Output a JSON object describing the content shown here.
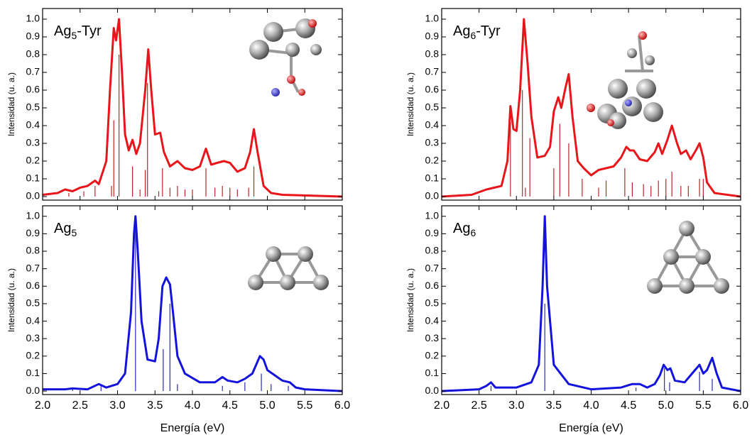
{
  "chart_data": [
    {
      "type": "line",
      "label": {
        "text": "Ag",
        "sub": "5",
        "suffix": "-Tyr"
      },
      "ylabel": "Intensidad (u. a.)",
      "xlim": [
        2.0,
        6.0
      ],
      "ylim": [
        -0.02,
        1.06
      ],
      "xticks": [
        2,
        2.5,
        3,
        3.5,
        4,
        4.5,
        5,
        5.5,
        6
      ],
      "yticks": [
        {
          "value": 0,
          "label": "0.0"
        },
        {
          "value": 0.1,
          "label": "0.1"
        },
        {
          "value": 0.2,
          "label": "0.2"
        },
        {
          "value": 0.3,
          "label": "0.3"
        },
        {
          "value": 0.4,
          "label": "0.4"
        },
        {
          "value": 0.5,
          "label": "0.5"
        },
        {
          "value": 0.6,
          "label": "0.6"
        },
        {
          "value": 0.7,
          "label": "0.7"
        },
        {
          "value": 0.8,
          "label": "0.8"
        },
        {
          "value": 0.9,
          "label": "0.9"
        },
        {
          "value": 1,
          "label": "1.0"
        }
      ],
      "series": [
        {
          "style": "line",
          "color": "#e8161b",
          "x": [
            2.0,
            2.2,
            2.3,
            2.4,
            2.5,
            2.6,
            2.7,
            2.75,
            2.85,
            2.9,
            2.95,
            2.98,
            3.02,
            3.06,
            3.1,
            3.15,
            3.2,
            3.25,
            3.3,
            3.37,
            3.41,
            3.45,
            3.5,
            3.57,
            3.62,
            3.7,
            3.8,
            3.9,
            4.0,
            4.1,
            4.18,
            4.25,
            4.33,
            4.42,
            4.5,
            4.6,
            4.7,
            4.77,
            4.82,
            4.87,
            4.95,
            5.05,
            5.2,
            6.0
          ],
          "values": [
            0.01,
            0.02,
            0.04,
            0.03,
            0.05,
            0.06,
            0.09,
            0.07,
            0.2,
            0.6,
            0.95,
            0.88,
            1.0,
            0.7,
            0.35,
            0.26,
            0.32,
            0.24,
            0.3,
            0.6,
            0.83,
            0.6,
            0.35,
            0.36,
            0.25,
            0.17,
            0.2,
            0.16,
            0.15,
            0.17,
            0.27,
            0.18,
            0.19,
            0.2,
            0.19,
            0.14,
            0.16,
            0.25,
            0.38,
            0.25,
            0.06,
            0.02,
            0.01,
            0.0
          ]
        },
        {
          "style": "stick",
          "color": "#b8282c",
          "x": [
            2.35,
            2.55,
            2.7,
            2.92,
            2.95,
            3.02,
            3.2,
            3.3,
            3.37,
            3.4,
            3.55,
            3.6,
            3.7,
            3.8,
            3.9,
            4.0,
            4.18,
            4.3,
            4.4,
            4.5,
            4.6,
            4.75,
            4.82
          ],
          "values": [
            0.02,
            0.03,
            0.06,
            0.06,
            0.43,
            0.8,
            0.17,
            0.04,
            0.15,
            0.64,
            0.03,
            0.16,
            0.05,
            0.06,
            0.04,
            0.04,
            0.16,
            0.05,
            0.06,
            0.05,
            0.04,
            0.05,
            0.17
          ]
        }
      ]
    },
    {
      "type": "line",
      "label": {
        "text": "Ag",
        "sub": "6",
        "suffix": "-Tyr"
      },
      "ylabel": "Intensidad (u. a.)",
      "xlim": [
        2.0,
        6.0
      ],
      "ylim": [
        -0.02,
        1.06
      ],
      "xticks": [
        2,
        2.5,
        3,
        3.5,
        4,
        4.5,
        5,
        5.5,
        6
      ],
      "yticks": [
        {
          "value": 0,
          "label": "0.0"
        },
        {
          "value": 0.1,
          "label": "0.1"
        },
        {
          "value": 0.2,
          "label": "0.2"
        },
        {
          "value": 0.3,
          "label": "0.3"
        },
        {
          "value": 0.4,
          "label": "0.4"
        },
        {
          "value": 0.5,
          "label": "0.5"
        },
        {
          "value": 0.6,
          "label": "0.6"
        },
        {
          "value": 0.7,
          "label": "0.7"
        },
        {
          "value": 0.8,
          "label": "0.8"
        },
        {
          "value": 0.9,
          "label": "0.9"
        },
        {
          "value": 1,
          "label": "1.0"
        }
      ],
      "series": [
        {
          "style": "line",
          "color": "#e8161b",
          "x": [
            2.0,
            2.4,
            2.6,
            2.8,
            2.88,
            2.92,
            2.96,
            3.0,
            3.05,
            3.1,
            3.15,
            3.2,
            3.28,
            3.38,
            3.45,
            3.5,
            3.56,
            3.6,
            3.66,
            3.7,
            3.75,
            3.82,
            3.9,
            4.0,
            4.1,
            4.2,
            4.3,
            4.4,
            4.47,
            4.52,
            4.57,
            4.65,
            4.75,
            4.85,
            4.9,
            4.95,
            5.02,
            5.08,
            5.15,
            5.2,
            5.27,
            5.33,
            5.4,
            5.45,
            5.5,
            5.55,
            5.65,
            6.0
          ],
          "values": [
            0.0,
            0.01,
            0.04,
            0.06,
            0.2,
            0.51,
            0.38,
            0.37,
            0.6,
            1.0,
            0.75,
            0.45,
            0.22,
            0.23,
            0.28,
            0.48,
            0.56,
            0.5,
            0.62,
            0.69,
            0.45,
            0.2,
            0.16,
            0.12,
            0.15,
            0.16,
            0.17,
            0.22,
            0.28,
            0.26,
            0.26,
            0.21,
            0.2,
            0.25,
            0.3,
            0.24,
            0.32,
            0.4,
            0.3,
            0.24,
            0.26,
            0.21,
            0.26,
            0.3,
            0.22,
            0.08,
            0.02,
            0.0
          ]
        },
        {
          "style": "stick",
          "color": "#b8282c",
          "x": [
            2.92,
            3.08,
            3.12,
            3.18,
            3.5,
            3.58,
            3.7,
            3.88,
            4.1,
            4.2,
            4.45,
            4.55,
            4.7,
            4.8,
            4.9,
            5.0,
            5.08,
            5.2,
            5.3,
            5.45,
            5.5
          ],
          "values": [
            0.42,
            0.6,
            0.05,
            0.33,
            0.16,
            0.41,
            0.3,
            0.1,
            0.05,
            0.09,
            0.16,
            0.08,
            0.07,
            0.06,
            0.09,
            0.1,
            0.14,
            0.06,
            0.06,
            0.1,
            0.1
          ]
        }
      ]
    },
    {
      "type": "line",
      "label": {
        "text": "Ag",
        "sub": "5"
      },
      "ylabel": "Intensidad (u. a.)",
      "xlabel": "Energía (eV)",
      "xlim": [
        2.0,
        6.0
      ],
      "ylim": [
        -0.02,
        1.06
      ],
      "xticks": [
        {
          "value": 2,
          "label": "2.0"
        },
        {
          "value": 2.5,
          "label": "2.5"
        },
        {
          "value": 3,
          "label": "3.0"
        },
        {
          "value": 3.5,
          "label": "3.5"
        },
        {
          "value": 4,
          "label": "4.0"
        },
        {
          "value": 4.5,
          "label": "4.5"
        },
        {
          "value": 5,
          "label": "5.0"
        },
        {
          "value": 5.5,
          "label": "5.5"
        },
        {
          "value": 6,
          "label": "6.0"
        }
      ],
      "yticks": [
        {
          "value": 0,
          "label": "0.0"
        },
        {
          "value": 0.1,
          "label": "0.1"
        },
        {
          "value": 0.2,
          "label": "0.2"
        },
        {
          "value": 0.3,
          "label": "0.3"
        },
        {
          "value": 0.4,
          "label": "0.4"
        },
        {
          "value": 0.5,
          "label": "0.5"
        },
        {
          "value": 0.6,
          "label": "0.6"
        },
        {
          "value": 0.7,
          "label": "0.7"
        },
        {
          "value": 0.8,
          "label": "0.8"
        },
        {
          "value": 0.9,
          "label": "0.9"
        },
        {
          "value": 1,
          "label": "1.0"
        }
      ],
      "series": [
        {
          "style": "line",
          "color": "#1313dc",
          "x": [
            2.0,
            2.3,
            2.4,
            2.6,
            2.75,
            2.85,
            3.0,
            3.1,
            3.18,
            3.22,
            3.24,
            3.27,
            3.32,
            3.4,
            3.5,
            3.55,
            3.6,
            3.65,
            3.7,
            3.74,
            3.8,
            3.9,
            4.1,
            4.3,
            4.4,
            4.47,
            4.6,
            4.7,
            4.8,
            4.9,
            4.95,
            5.0,
            5.1,
            5.2,
            5.3,
            5.38,
            5.5,
            6.0
          ],
          "values": [
            0.01,
            0.01,
            0.015,
            0.01,
            0.04,
            0.02,
            0.04,
            0.1,
            0.45,
            0.9,
            1.0,
            0.8,
            0.4,
            0.18,
            0.17,
            0.3,
            0.6,
            0.65,
            0.61,
            0.45,
            0.2,
            0.1,
            0.05,
            0.05,
            0.08,
            0.06,
            0.05,
            0.07,
            0.1,
            0.2,
            0.18,
            0.12,
            0.09,
            0.06,
            0.05,
            0.02,
            0.01,
            0.0
          ]
        },
        {
          "style": "stick",
          "color": "#2a2ab8",
          "x": [
            2.4,
            2.78,
            3.24,
            3.61,
            3.7,
            3.8,
            4.4,
            4.7,
            4.92,
            5.05,
            5.28
          ],
          "values": [
            0.01,
            0.03,
            0.92,
            0.24,
            0.5,
            0.04,
            0.03,
            0.05,
            0.1,
            0.04,
            0.03
          ]
        }
      ]
    },
    {
      "type": "line",
      "label": {
        "text": "Ag",
        "sub": "6"
      },
      "ylabel": "Intensidad (u. a.)",
      "xlabel": "Energía (eV)",
      "xlim": [
        2.0,
        6.0
      ],
      "ylim": [
        -0.02,
        1.06
      ],
      "xticks": [
        {
          "value": 2,
          "label": "2.0"
        },
        {
          "value": 2.5,
          "label": "2.5"
        },
        {
          "value": 3,
          "label": "3.0"
        },
        {
          "value": 3.5,
          "label": "3.5"
        },
        {
          "value": 4,
          "label": "4.0"
        },
        {
          "value": 4.5,
          "label": "4.5"
        },
        {
          "value": 5,
          "label": "5.0"
        },
        {
          "value": 5.5,
          "label": "5.5"
        },
        {
          "value": 6,
          "label": "6.0"
        }
      ],
      "yticks": [
        {
          "value": 0,
          "label": "0.0"
        },
        {
          "value": 0.1,
          "label": "0.1"
        },
        {
          "value": 0.2,
          "label": "0.2"
        },
        {
          "value": 0.3,
          "label": "0.3"
        },
        {
          "value": 0.4,
          "label": "0.4"
        },
        {
          "value": 0.5,
          "label": "0.5"
        },
        {
          "value": 0.6,
          "label": "0.6"
        },
        {
          "value": 0.7,
          "label": "0.7"
        },
        {
          "value": 0.8,
          "label": "0.8"
        },
        {
          "value": 0.9,
          "label": "0.9"
        },
        {
          "value": 1,
          "label": "1.0"
        }
      ],
      "series": [
        {
          "style": "line",
          "color": "#1313dc",
          "x": [
            2.0,
            2.5,
            2.6,
            2.66,
            2.72,
            3.0,
            3.2,
            3.3,
            3.35,
            3.38,
            3.41,
            3.5,
            3.7,
            4.0,
            4.4,
            4.55,
            4.65,
            4.75,
            4.85,
            4.92,
            4.97,
            5.02,
            5.06,
            5.12,
            5.25,
            5.35,
            5.45,
            5.5,
            5.55,
            5.62,
            5.68,
            5.75,
            6.0
          ],
          "values": [
            0.0,
            0.01,
            0.03,
            0.05,
            0.02,
            0.02,
            0.05,
            0.15,
            0.6,
            1.0,
            0.6,
            0.15,
            0.04,
            0.01,
            0.02,
            0.04,
            0.04,
            0.02,
            0.04,
            0.09,
            0.15,
            0.12,
            0.13,
            0.06,
            0.05,
            0.1,
            0.15,
            0.1,
            0.12,
            0.19,
            0.1,
            0.02,
            0.0
          ]
        },
        {
          "style": "stick",
          "color": "#2a2ab8",
          "x": [
            2.66,
            3.38,
            4.6,
            4.98,
            5.05,
            5.45,
            5.62
          ],
          "values": [
            0.03,
            0.5,
            0.02,
            0.13,
            0.05,
            0.11,
            0.07
          ]
        }
      ]
    }
  ]
}
